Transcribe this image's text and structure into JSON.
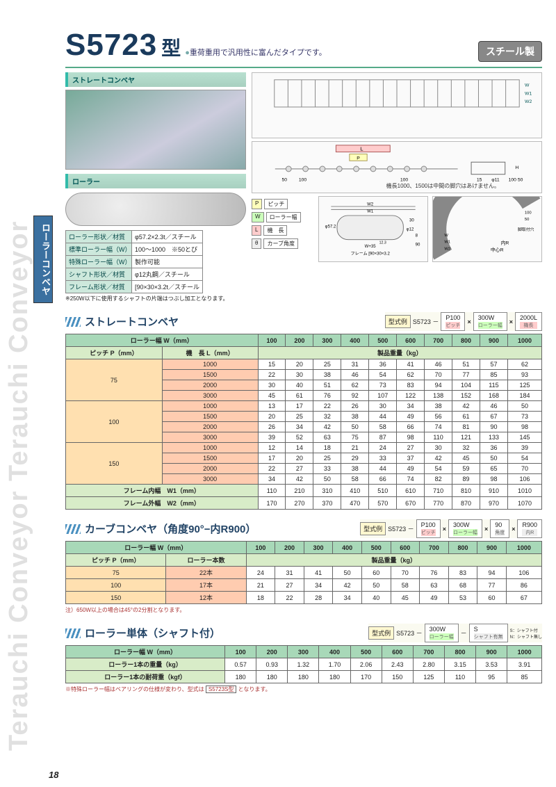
{
  "watermark_text": "Terauchi Conveyor Terauchi Conveyor",
  "side_tab": "ローラーコンベヤ",
  "page_number": "18",
  "header": {
    "model": "S5723",
    "suffix": "型",
    "tagline": "重荷重用で汎用性に富んだタイプです。",
    "material_badge": "スチール製"
  },
  "images": {
    "straight_label": "ストレートコンベヤ",
    "roller_label": "ローラー"
  },
  "diag_note1": "機長1000、1500は中間の脚穴はあけません。",
  "spec_table": {
    "rows": [
      [
        "ローラー形状／材質",
        "φ57.2×2.3t／スチール"
      ],
      [
        "標準ローラー幅（W）",
        "100～1000　※50とび"
      ],
      [
        "特殊ローラー幅（W）",
        "製作可能"
      ],
      [
        "シャフト形状／材質",
        "φ12丸鋼／スチール"
      ],
      [
        "フレーム形状／材質",
        "[90×30×3.2t／スチール"
      ]
    ],
    "note": "※250W以下に使用するシャフトの片端はつぶし加工となります。"
  },
  "legend": {
    "P": "ピッチ",
    "W": "ローラー幅",
    "L": "機　長",
    "theta": "カーブ角度"
  },
  "widths_header": [
    "ローラー幅 W（mm）",
    "100",
    "200",
    "300",
    "400",
    "500",
    "600",
    "700",
    "800",
    "900",
    "1000"
  ],
  "section1": {
    "title": "ストレートコンベヤ",
    "model_ex": {
      "label": "型式例",
      "base": "S5723 －",
      "p": "P100",
      "p_cap": "ピッチ",
      "w": "300W",
      "w_cap": "ローラー幅",
      "l": "2000L",
      "l_cap": "機長"
    },
    "sub_header": [
      "ピッチ P（mm）",
      "機　長 L（mm）",
      "製品重量（kg）"
    ],
    "groups": [
      {
        "pitch": "75",
        "rows": [
          {
            "L": "1000",
            "v": [
              "15",
              "20",
              "25",
              "31",
              "36",
              "41",
              "46",
              "51",
              "57",
              "62"
            ]
          },
          {
            "L": "1500",
            "v": [
              "22",
              "30",
              "38",
              "46",
              "54",
              "62",
              "70",
              "77",
              "85",
              "93"
            ]
          },
          {
            "L": "2000",
            "v": [
              "30",
              "40",
              "51",
              "62",
              "73",
              "83",
              "94",
              "104",
              "115",
              "125"
            ]
          },
          {
            "L": "3000",
            "v": [
              "45",
              "61",
              "76",
              "92",
              "107",
              "122",
              "138",
              "152",
              "168",
              "184"
            ]
          }
        ]
      },
      {
        "pitch": "100",
        "rows": [
          {
            "L": "1000",
            "v": [
              "13",
              "17",
              "22",
              "26",
              "30",
              "34",
              "38",
              "42",
              "46",
              "50"
            ]
          },
          {
            "L": "1500",
            "v": [
              "20",
              "25",
              "32",
              "38",
              "44",
              "49",
              "56",
              "61",
              "67",
              "73"
            ]
          },
          {
            "L": "2000",
            "v": [
              "26",
              "34",
              "42",
              "50",
              "58",
              "66",
              "74",
              "81",
              "90",
              "98"
            ]
          },
          {
            "L": "3000",
            "v": [
              "39",
              "52",
              "63",
              "75",
              "87",
              "98",
              "110",
              "121",
              "133",
              "145"
            ]
          }
        ]
      },
      {
        "pitch": "150",
        "rows": [
          {
            "L": "1000",
            "v": [
              "12",
              "14",
              "18",
              "21",
              "24",
              "27",
              "30",
              "32",
              "36",
              "39"
            ]
          },
          {
            "L": "1500",
            "v": [
              "17",
              "20",
              "25",
              "29",
              "33",
              "37",
              "42",
              "45",
              "50",
              "54"
            ]
          },
          {
            "L": "2000",
            "v": [
              "22",
              "27",
              "33",
              "38",
              "44",
              "49",
              "54",
              "59",
              "65",
              "70"
            ]
          },
          {
            "L": "3000",
            "v": [
              "34",
              "42",
              "50",
              "58",
              "66",
              "74",
              "82",
              "89",
              "98",
              "106"
            ]
          }
        ]
      }
    ],
    "frame_rows": [
      {
        "label": "フレーム内幅　W1（mm）",
        "v": [
          "110",
          "210",
          "310",
          "410",
          "510",
          "610",
          "710",
          "810",
          "910",
          "1010"
        ]
      },
      {
        "label": "フレーム外幅　W2（mm）",
        "v": [
          "170",
          "270",
          "370",
          "470",
          "570",
          "670",
          "770",
          "870",
          "970",
          "1070"
        ]
      }
    ]
  },
  "section2": {
    "title": "カーブコンベヤ（角度90°−内R900）",
    "model_ex": {
      "label": "型式例",
      "base": "S5723 －",
      "p": "P100",
      "p_cap": "ピッチ",
      "w": "300W",
      "w_cap": "ローラー幅",
      "a": "90",
      "a_cap": "角度",
      "r": "R900",
      "r_cap": "内R"
    },
    "sub_header": [
      "ピッチ P（mm）",
      "ローラー本数",
      "製品重量（kg）"
    ],
    "rows": [
      {
        "pitch": "75",
        "count": "22本",
        "v": [
          "24",
          "31",
          "41",
          "50",
          "60",
          "70",
          "76",
          "83",
          "94",
          "106"
        ]
      },
      {
        "pitch": "100",
        "count": "17本",
        "v": [
          "21",
          "27",
          "34",
          "42",
          "50",
          "58",
          "63",
          "68",
          "77",
          "86"
        ]
      },
      {
        "pitch": "150",
        "count": "12本",
        "v": [
          "18",
          "22",
          "28",
          "34",
          "40",
          "45",
          "49",
          "53",
          "60",
          "67"
        ]
      }
    ],
    "note": "注）650W以上の場合は45°の2分割となります。"
  },
  "section3": {
    "title": "ローラー単体（シャフト付）",
    "model_ex": {
      "label": "型式例",
      "base": "S5723 －",
      "w": "300W",
      "w_cap": "ローラー幅",
      "s": "S",
      "s_cap": "シャフト有無",
      "s_note": "S：シャフト付\nN：シャフト無し"
    },
    "rows": [
      {
        "label": "ローラー1本の重量（kg）",
        "v": [
          "0.57",
          "0.93",
          "1.32",
          "1.70",
          "2.06",
          "2.43",
          "2.80",
          "3.15",
          "3.53",
          "3.91"
        ]
      },
      {
        "label": "ローラー1本の耐荷重（kgf）",
        "v": [
          "180",
          "180",
          "180",
          "180",
          "170",
          "150",
          "125",
          "110",
          "95",
          "85"
        ]
      }
    ],
    "note_prefix": "※特殊ローラー幅はベアリングの仕様が変わり、型式は",
    "note_box": "S5723S型",
    "note_suffix": "となります。"
  }
}
